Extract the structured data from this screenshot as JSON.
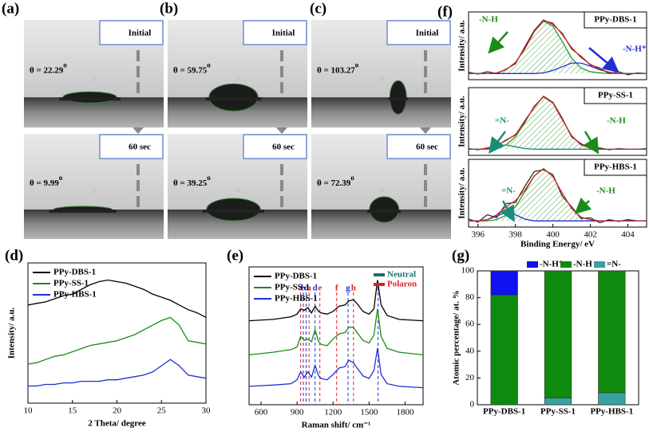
{
  "photos": [
    {
      "panel": "(a)",
      "frames": [
        {
          "tag": "Initial",
          "angle": "θ = 22.29",
          "angle_unit": "o"
        },
        {
          "tag": "60 sec",
          "angle": "θ = 9.99",
          "angle_unit": "o"
        }
      ]
    },
    {
      "panel": "(b)",
      "frames": [
        {
          "tag": "Initial",
          "angle": "θ = 59.75",
          "angle_unit": "o"
        },
        {
          "tag": "60 sec",
          "angle": "θ = 39.25",
          "angle_unit": "o"
        }
      ]
    },
    {
      "panel": "(c)",
      "frames": [
        {
          "tag": "Initial",
          "angle": "θ = 103.27",
          "angle_unit": "o"
        },
        {
          "tag": "60 sec",
          "angle": "θ = 72.39",
          "angle_unit": "o"
        }
      ]
    }
  ],
  "chart_data": [
    {
      "type": "line",
      "panel": "(d)",
      "xlabel": "2 Theta/ degree",
      "ylabel": "Intensity/ a.u.",
      "xlim": [
        10,
        30
      ],
      "xticks": [
        10,
        15,
        20,
        25,
        30
      ],
      "ylim": [
        0,
        9
      ],
      "x": [
        10,
        11,
        12,
        13,
        14,
        15,
        16,
        17,
        18,
        19,
        20,
        21,
        22,
        23,
        24,
        25,
        26,
        27,
        28,
        29,
        30
      ],
      "series": [
        {
          "name": "PPy-DBS-1",
          "color": "#000000",
          "values": [
            6.3,
            6.4,
            6.5,
            6.7,
            6.9,
            7.0,
            7.3,
            7.6,
            7.8,
            7.9,
            7.8,
            7.7,
            7.5,
            7.3,
            7.0,
            6.8,
            6.6,
            6.3,
            6.0,
            5.8,
            5.5
          ]
        },
        {
          "name": "PPy-SS-1",
          "color": "#1a8c1a",
          "values": [
            2.5,
            2.6,
            2.8,
            3.0,
            3.1,
            3.3,
            3.5,
            3.7,
            3.8,
            3.9,
            4.0,
            4.2,
            4.4,
            4.7,
            5.0,
            5.3,
            5.5,
            5.0,
            4.0,
            3.9,
            3.8
          ]
        },
        {
          "name": "PPy-HBS-1",
          "color": "#1f2fd0",
          "values": [
            1.1,
            1.1,
            1.2,
            1.2,
            1.3,
            1.3,
            1.4,
            1.4,
            1.4,
            1.5,
            1.5,
            1.6,
            1.7,
            1.8,
            2.0,
            2.4,
            2.8,
            2.4,
            1.8,
            1.7,
            1.6
          ]
        }
      ]
    },
    {
      "type": "line",
      "panel": "(f)",
      "sample": "PPy-DBS-1",
      "ylabel": "Intensity/ a.u.",
      "xlim": [
        395.5,
        405
      ],
      "ylim": [
        0,
        1.1
      ],
      "x": [
        395.5,
        396,
        396.5,
        397,
        397.5,
        398,
        398.5,
        399,
        399.5,
        400,
        400.5,
        401,
        401.5,
        402,
        402.5,
        403,
        403.5,
        404,
        404.5,
        405
      ],
      "annotations": [
        {
          "text": "-N-H",
          "color": "#1a8c1a"
        },
        {
          "text": "-N-H⁺",
          "color": "#1f2fd0"
        }
      ],
      "series": [
        {
          "color": "#333333",
          "values": [
            0.12,
            0.09,
            0.13,
            0.1,
            0.17,
            0.26,
            0.53,
            0.8,
            0.97,
            0.9,
            0.75,
            0.5,
            0.38,
            0.24,
            0.19,
            0.1,
            0.13,
            0.08,
            0.11,
            0.1
          ]
        },
        {
          "color": "#1a8c1a",
          "hatch": true,
          "values": [
            0.1,
            0.1,
            0.1,
            0.11,
            0.16,
            0.28,
            0.5,
            0.78,
            0.95,
            0.87,
            0.62,
            0.35,
            0.19,
            0.13,
            0.11,
            0.1,
            0.1,
            0.1,
            0.1,
            0.1
          ]
        },
        {
          "color": "#1f2fd0",
          "values": [
            0.1,
            0.1,
            0.1,
            0.1,
            0.1,
            0.1,
            0.1,
            0.1,
            0.11,
            0.15,
            0.21,
            0.27,
            0.27,
            0.22,
            0.16,
            0.12,
            0.1,
            0.1,
            0.1,
            0.1
          ]
        },
        {
          "color": "#e02020",
          "values": [
            0.1,
            0.1,
            0.1,
            0.11,
            0.16,
            0.28,
            0.5,
            0.78,
            0.96,
            0.92,
            0.73,
            0.52,
            0.36,
            0.25,
            0.17,
            0.12,
            0.1,
            0.1,
            0.1,
            0.1
          ]
        }
      ]
    },
    {
      "type": "line",
      "sample": "PPy-SS-1",
      "ylabel": "Intensity/ a.u.",
      "xlim": [
        395.5,
        405
      ],
      "ylim": [
        0,
        1.1
      ],
      "x": [
        395.5,
        396,
        396.5,
        397,
        397.5,
        398,
        398.5,
        399,
        399.5,
        400,
        400.5,
        401,
        401.5,
        402,
        402.5,
        403,
        403.5,
        404,
        404.5,
        405
      ],
      "annotations": [
        {
          "text": "=N-",
          "color": "#1a8c7a"
        },
        {
          "text": "-N-H",
          "color": "#1a8c1a"
        }
      ],
      "series": [
        {
          "color": "#333333",
          "values": [
            0.11,
            0.09,
            0.12,
            0.15,
            0.25,
            0.33,
            0.56,
            0.78,
            0.96,
            0.86,
            0.6,
            0.3,
            0.19,
            0.11,
            0.12,
            0.09,
            0.11,
            0.1,
            0.1,
            0.11
          ]
        },
        {
          "color": "#1a8c1a",
          "hatch": true,
          "values": [
            0.1,
            0.1,
            0.1,
            0.11,
            0.17,
            0.3,
            0.53,
            0.8,
            0.95,
            0.85,
            0.58,
            0.32,
            0.17,
            0.12,
            0.1,
            0.1,
            0.1,
            0.1,
            0.1,
            0.1
          ]
        },
        {
          "color": "#1a8c7a",
          "values": [
            0.1,
            0.1,
            0.11,
            0.15,
            0.17,
            0.14,
            0.11,
            0.1,
            0.1,
            0.1,
            0.1,
            0.1,
            0.1,
            0.1,
            0.1,
            0.1,
            0.1,
            0.1,
            0.1,
            0.1
          ]
        },
        {
          "color": "#e02020",
          "values": [
            0.1,
            0.1,
            0.11,
            0.16,
            0.24,
            0.34,
            0.54,
            0.8,
            0.95,
            0.85,
            0.58,
            0.32,
            0.17,
            0.12,
            0.1,
            0.1,
            0.1,
            0.1,
            0.1,
            0.1
          ]
        }
      ]
    },
    {
      "type": "line",
      "sample": "PPy-HBS-1",
      "ylabel": "Intensity/ a.u.",
      "xlabel": "Binding Energy/ eV",
      "xlim": [
        395.5,
        405
      ],
      "xticks": [
        396,
        398,
        400,
        402,
        404
      ],
      "ylim": [
        0,
        1.1
      ],
      "x": [
        395.5,
        396,
        396.5,
        397,
        397.5,
        398,
        398.5,
        399,
        399.5,
        400,
        400.5,
        401,
        401.5,
        402,
        402.5,
        403,
        403.5,
        404,
        404.5,
        405
      ],
      "annotations": [
        {
          "text": "=N-",
          "color": "#1a8c7a"
        },
        {
          "text": "-N-H",
          "color": "#1a8c1a"
        }
      ],
      "series": [
        {
          "color": "#333333",
          "values": [
            0.13,
            0.08,
            0.2,
            0.15,
            0.38,
            0.4,
            0.66,
            0.9,
            0.93,
            0.85,
            0.5,
            0.33,
            0.14,
            0.15,
            0.07,
            0.12,
            0.09,
            0.12,
            0.1,
            0.1
          ]
        },
        {
          "color": "#1a8c1a",
          "hatch": true,
          "values": [
            0.1,
            0.1,
            0.1,
            0.12,
            0.19,
            0.33,
            0.57,
            0.83,
            0.95,
            0.82,
            0.55,
            0.3,
            0.16,
            0.12,
            0.1,
            0.1,
            0.1,
            0.1,
            0.1,
            0.1
          ]
        },
        {
          "color": "#1f2fd0",
          "values": [
            0.1,
            0.1,
            0.12,
            0.18,
            0.24,
            0.2,
            0.13,
            0.1,
            0.1,
            0.1,
            0.1,
            0.1,
            0.1,
            0.1,
            0.1,
            0.1,
            0.1,
            0.1,
            0.1,
            0.1
          ]
        },
        {
          "color": "#e02020",
          "values": [
            0.1,
            0.1,
            0.12,
            0.2,
            0.33,
            0.43,
            0.6,
            0.83,
            0.95,
            0.82,
            0.55,
            0.3,
            0.16,
            0.12,
            0.1,
            0.1,
            0.1,
            0.1,
            0.1,
            0.1
          ]
        }
      ]
    },
    {
      "type": "line",
      "panel": "(e)",
      "xlabel": "Raman shift/ cm⁻¹",
      "xlim": [
        500,
        1950
      ],
      "xticks": [
        600,
        900,
        1200,
        1500,
        1800
      ],
      "ylim": [
        0,
        10.5
      ],
      "x": [
        500,
        700,
        850,
        900,
        930,
        960,
        990,
        1020,
        1050,
        1080,
        1100,
        1150,
        1200,
        1250,
        1300,
        1330,
        1370,
        1400,
        1450,
        1500,
        1540,
        1570,
        1600,
        1650,
        1750,
        1950
      ],
      "series": [
        {
          "name": "PPy-DBS-1",
          "color": "#000000",
          "values": [
            6.4,
            6.5,
            6.7,
            6.9,
            7.3,
            7.2,
            7.4,
            7.0,
            7.5,
            7.1,
            7.0,
            6.9,
            7.1,
            7.5,
            7.6,
            7.9,
            8.0,
            7.7,
            7.1,
            6.9,
            7.3,
            9.5,
            7.6,
            6.8,
            6.5,
            6.4
          ]
        },
        {
          "name": "PPy-SS-1",
          "color": "#1a8c1a",
          "values": [
            3.8,
            4.0,
            4.2,
            4.4,
            5.2,
            4.9,
            5.0,
            4.8,
            5.7,
            4.8,
            4.6,
            4.5,
            5.0,
            5.4,
            5.5,
            5.9,
            5.9,
            5.5,
            4.9,
            4.7,
            5.3,
            7.3,
            5.2,
            4.3,
            4.0,
            3.8
          ]
        },
        {
          "name": "PPy-HBS-1",
          "color": "#1f2fd0",
          "values": [
            1.4,
            1.5,
            1.6,
            1.9,
            2.5,
            2.1,
            2.5,
            2.1,
            3.0,
            2.2,
            2.0,
            1.9,
            2.3,
            2.8,
            2.9,
            3.4,
            3.2,
            2.8,
            2.2,
            2.0,
            2.6,
            4.3,
            2.3,
            1.6,
            1.4,
            1.3
          ]
        }
      ],
      "marker_legend": [
        {
          "name": "Neutral",
          "color": "#1a7366"
        },
        {
          "name": "Polaron",
          "color": "#e02020"
        }
      ],
      "markers": [
        {
          "label": "a",
          "x": 930,
          "color": "#e02020"
        },
        {
          "label": "b",
          "x": 952,
          "color": "#1f2fd0"
        },
        {
          "label": "c",
          "x": 975,
          "color": "#1f2fd0"
        },
        {
          "label": "a",
          "x": 1000,
          "color": "#e02020"
        },
        {
          "label": "d",
          "x": 1050,
          "color": "#1f2fd0"
        },
        {
          "label": "e",
          "x": 1090,
          "color": "#e02020"
        },
        {
          "label": "f",
          "x": 1230,
          "color": "#e02020"
        },
        {
          "label": "g",
          "x": 1325,
          "color": "#1f2fd0"
        },
        {
          "label": "h",
          "x": 1370,
          "color": "#e02020"
        },
        {
          "label": "i",
          "x": 1575,
          "color": "#1f2fd0"
        }
      ]
    },
    {
      "type": "bar",
      "panel": "(g)",
      "ylabel": "Atomic percentage/ at. %",
      "ylim": [
        0,
        100
      ],
      "yticks": [
        0,
        20,
        40,
        60,
        80,
        100
      ],
      "categories": [
        "PPy-DBS-1",
        "PPy-SS-1",
        "PPy-HBS-1"
      ],
      "series": [
        {
          "name": "-N-H⁺",
          "color": "#1010f0",
          "values": [
            18,
            0,
            0
          ]
        },
        {
          "name": "-N-H",
          "color": "#0e8a0e",
          "values": [
            82,
            95,
            91
          ]
        },
        {
          "name": "=N-",
          "color": "#3aa0a0",
          "values": [
            0,
            5,
            9
          ]
        }
      ]
    }
  ]
}
